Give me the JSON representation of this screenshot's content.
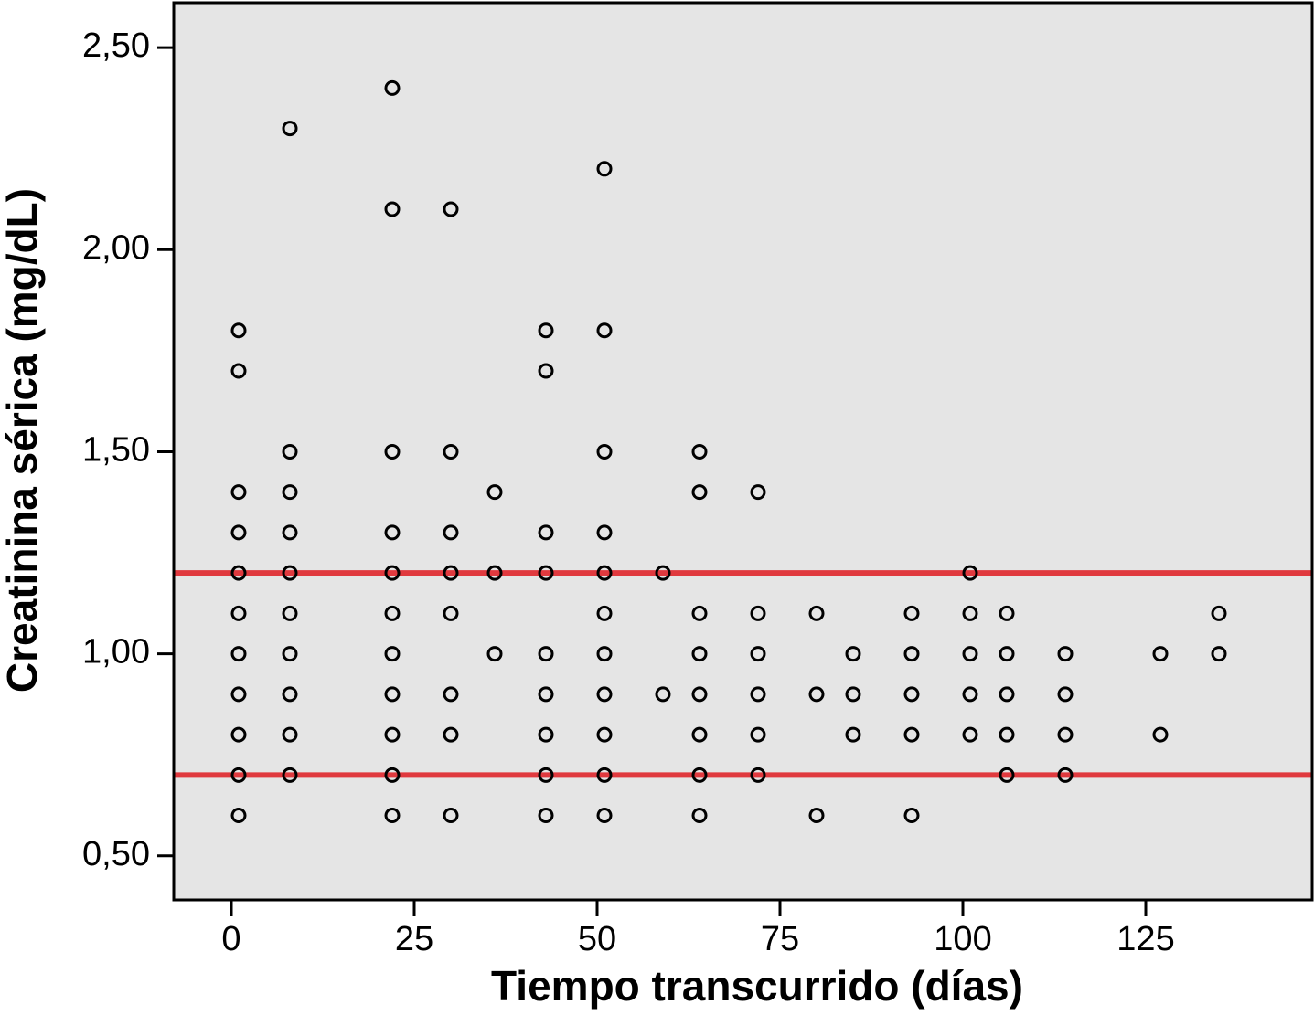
{
  "chart_data": {
    "type": "scatter",
    "x_label": "Tiempo transcurrido (días)",
    "y_label": "Creatinina sérica (mg/dL)",
    "xlim": [
      -7.875,
      147.75
    ],
    "ylim": [
      0.391,
      2.611
    ],
    "xticks": [
      0,
      25,
      50,
      75,
      100,
      125
    ],
    "yticks": [
      {
        "value": 0.5,
        "label": "0,50"
      },
      {
        "value": 1.0,
        "label": "1,00"
      },
      {
        "value": 1.5,
        "label": "1,50"
      },
      {
        "value": 2.0,
        "label": "2,00"
      },
      {
        "value": 2.5,
        "label": "2,50"
      }
    ],
    "background": "#e5e5e5",
    "reference_lines": [
      {
        "value": 1.2,
        "color": "#e0393e"
      },
      {
        "value": 0.7,
        "color": "#e0393e"
      }
    ],
    "series": [
      {
        "color": "#000000",
        "x": [
          1,
          1,
          1,
          1,
          1,
          1,
          1,
          1,
          1,
          1,
          1,
          8,
          8,
          8,
          8,
          8,
          8,
          8,
          8,
          8,
          8,
          22,
          22,
          22,
          22,
          22,
          22,
          22,
          22,
          22,
          22,
          22,
          30,
          30,
          30,
          30,
          30,
          30,
          30,
          30,
          36,
          36,
          36,
          43,
          43,
          43,
          43,
          43,
          43,
          43,
          43,
          43,
          51,
          51,
          51,
          51,
          51,
          51,
          51,
          51,
          51,
          51,
          51,
          59,
          59,
          64,
          64,
          64,
          64,
          64,
          64,
          64,
          64,
          72,
          72,
          72,
          72,
          72,
          72,
          80,
          80,
          80,
          85,
          85,
          85,
          93,
          93,
          93,
          93,
          93,
          101,
          101,
          101,
          101,
          101,
          106,
          106,
          106,
          106,
          106,
          114,
          114,
          114,
          114,
          127,
          127,
          135,
          135
        ],
        "y": [
          1.8,
          1.7,
          1.4,
          1.3,
          1.2,
          1.1,
          1.0,
          0.9,
          0.8,
          0.7,
          0.6,
          2.3,
          1.5,
          1.4,
          1.3,
          1.2,
          1.1,
          1.0,
          0.9,
          0.8,
          0.7,
          2.4,
          2.1,
          1.5,
          1.3,
          1.2,
          1.1,
          1.0,
          0.9,
          0.8,
          0.7,
          0.6,
          2.1,
          1.5,
          1.3,
          1.2,
          1.1,
          0.9,
          0.8,
          0.6,
          1.4,
          1.2,
          1.0,
          1.8,
          1.7,
          1.3,
          1.2,
          1.0,
          0.9,
          0.8,
          0.7,
          0.6,
          2.2,
          1.8,
          1.5,
          1.3,
          1.2,
          1.1,
          1.0,
          0.9,
          0.8,
          0.7,
          0.6,
          1.2,
          0.9,
          1.5,
          1.4,
          1.1,
          1.0,
          0.9,
          0.8,
          0.7,
          0.6,
          1.4,
          1.1,
          1.0,
          0.9,
          0.8,
          0.7,
          1.1,
          0.9,
          0.6,
          1.0,
          0.9,
          0.8,
          1.1,
          1.0,
          0.9,
          0.8,
          0.6,
          1.2,
          1.1,
          1.0,
          0.9,
          0.8,
          1.1,
          1.0,
          0.9,
          0.8,
          0.7,
          1.0,
          0.9,
          0.8,
          0.7,
          1.0,
          0.8,
          1.1,
          1.0
        ]
      }
    ]
  }
}
